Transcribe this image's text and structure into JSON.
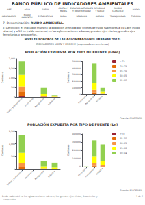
{
  "title": "BANCO PÚBLICO DE INDICADORES AMBIENTALES",
  "subtitle": [
    "NIVELES SONOROS DE LAS AGLOMERACIONES URBANAS 2012:",
    "INDICADORES LDEN Y LNOCHE (expresado en centenas)"
  ],
  "annotations": {
    "menu": [
      "AIRE",
      "AGUA",
      "SUELO",
      "COSTAS Y\nMARES",
      "ESPACIOS NATURALES\nY BIODIVERSIDAD",
      "RESIDUOS\nY SUELO",
      "CAMBIO\nCLIMÁTICO",
      "RUIDO"
    ],
    "submenu": [
      "INDICADORES",
      "RUIDO\nAMBIENTAL",
      "ESTADÍSTICAS",
      "SUELO",
      "RESIDUOS",
      "SUELOS",
      "TRANQUILIDAD",
      "TURISMO"
    ],
    "section": [
      "7. Denominación: ",
      "RUIDO AMBIENTAL."
    ],
    "definition": "2. Definición: El indicador muestra la población afectada por niveles de ruido superiores a 55 Lden (ruido diurno) y a 50 Ln (ruido nocturno) en las aglomeraciones urbanas, grandes ejes viarios, grandes ejes ferroviarios y aeropuertos.",
    "footer": [
      "Ruido ambiental en las aglomeraciones urbanas, los grandes ejes viarios, ferroviarios y aeropuertos",
      "1 de 7"
    ]
  },
  "chart_data": [
    {
      "type": "bar",
      "stacked": true,
      "title": "POBLACIÓN EXPUESTA POR TIPO DE FUENTE (Lden)",
      "categories": [
        "Tráfico y ferroviarios",
        "Ferroviario",
        "Aeropuertos",
        "Industria"
      ],
      "ylabel": "Centenas",
      "ylim": [
        0,
        2000000
      ],
      "yticks": [
        0,
        {
          "value": 500000,
          "label": "500"
        },
        {
          "value": 1000000,
          "label": "1,000"
        },
        {
          "value": 1500000,
          "label": "1,500"
        },
        {
          "value": 2000000,
          "label": "2,000"
        }
      ],
      "series": [
        {
          "name": ">75",
          "color": "#9b2335",
          "values": [
            50000,
            0,
            5000,
            1000
          ]
        },
        {
          "name": "70-75",
          "color": "#e36c09",
          "values": [
            200000,
            0,
            20000,
            5000
          ]
        },
        {
          "name": "65-70",
          "color": "#f79646",
          "values": [
            300000,
            200,
            50000,
            10000
          ]
        },
        {
          "name": "60-65",
          "color": "#ffff00",
          "values": [
            600000,
            500,
            100000,
            30000
          ]
        },
        {
          "name": "55-60",
          "color": "#92d050",
          "values": [
            700000,
            1000,
            300000,
            50000
          ]
        }
      ]
    },
    {
      "type": "bar",
      "stacked": true,
      "categories": [
        "Ferroviario",
        "Aeropuertos",
        "Industria"
      ],
      "ylabel": "Centenas",
      "ylim": [
        0,
        500000
      ],
      "yticks": [
        0,
        100000,
        200000,
        300000,
        400000,
        500000
      ],
      "legend": "right",
      "annotations": [
        "Fuente: MAGRAMA"
      ],
      "series": [
        {
          "name": ">75",
          "color": "#9b2335",
          "values": [
            0,
            5000,
            1000
          ]
        },
        {
          "name": "70-75",
          "color": "#e36c09",
          "values": [
            0,
            20000,
            5000
          ]
        },
        {
          "name": "65-70",
          "color": "#f79646",
          "values": [
            200,
            50000,
            10000
          ]
        },
        {
          "name": "60-65",
          "color": "#ffff00",
          "values": [
            500,
            100000,
            30000
          ]
        },
        {
          "name": "55-60",
          "color": "#92d050",
          "values": [
            1000,
            300000,
            50000
          ]
        }
      ]
    },
    {
      "type": "bar",
      "stacked": true,
      "title": "POBLACIÓN EXPUESTA POR TIPO DE FUENTE (Ln)",
      "categories": [
        "Tráfico y ferroviarios",
        "Ferroviario",
        "Aeropuertos",
        "Industria"
      ],
      "ylabel": "Centenas",
      "ylim": [
        0,
        1500000
      ],
      "yticks": [
        0,
        {
          "value": 500000,
          "label": "500"
        },
        {
          "value": 1000000,
          "label": "1,000"
        },
        {
          "value": 1500000,
          "label": "1,500"
        }
      ],
      "series": [
        {
          "name": ">70",
          "color": "#9b2335",
          "values": [
            20000,
            0,
            2000,
            1000
          ]
        },
        {
          "name": "65-70",
          "color": "#e36c09",
          "values": [
            80000,
            0,
            10000,
            5000
          ]
        },
        {
          "name": "60-65",
          "color": "#f79646",
          "values": [
            150000,
            100,
            30000,
            15000
          ]
        },
        {
          "name": "55-60",
          "color": "#ffff00",
          "values": [
            400000,
            300,
            80000,
            50000
          ]
        },
        {
          "name": "50-54",
          "color": "#92d050",
          "values": [
            700000,
            800,
            200000,
            200000
          ]
        }
      ]
    },
    {
      "type": "bar",
      "stacked": true,
      "categories": [
        "Ferroviario",
        "Aeropuertos",
        "Industria"
      ],
      "ylabel": "Centenas",
      "ylim": [
        0,
        400000
      ],
      "yticks": [
        0,
        100000,
        200000,
        300000,
        400000
      ],
      "legend": "right",
      "annotations": [
        "Fuente: MAGRAMA"
      ],
      "series": [
        {
          "name": ">70",
          "color": "#9b2335",
          "values": [
            0,
            2000,
            1000
          ]
        },
        {
          "name": "65-70",
          "color": "#e36c09",
          "values": [
            0,
            10000,
            5000
          ]
        },
        {
          "name": "60-65",
          "color": "#f79646",
          "values": [
            100,
            30000,
            15000
          ]
        },
        {
          "name": "55-60",
          "color": "#ffff00",
          "values": [
            300,
            80000,
            50000
          ]
        },
        {
          "name": "50-54",
          "color": "#92d050",
          "values": [
            800,
            200000,
            200000
          ]
        }
      ]
    }
  ]
}
